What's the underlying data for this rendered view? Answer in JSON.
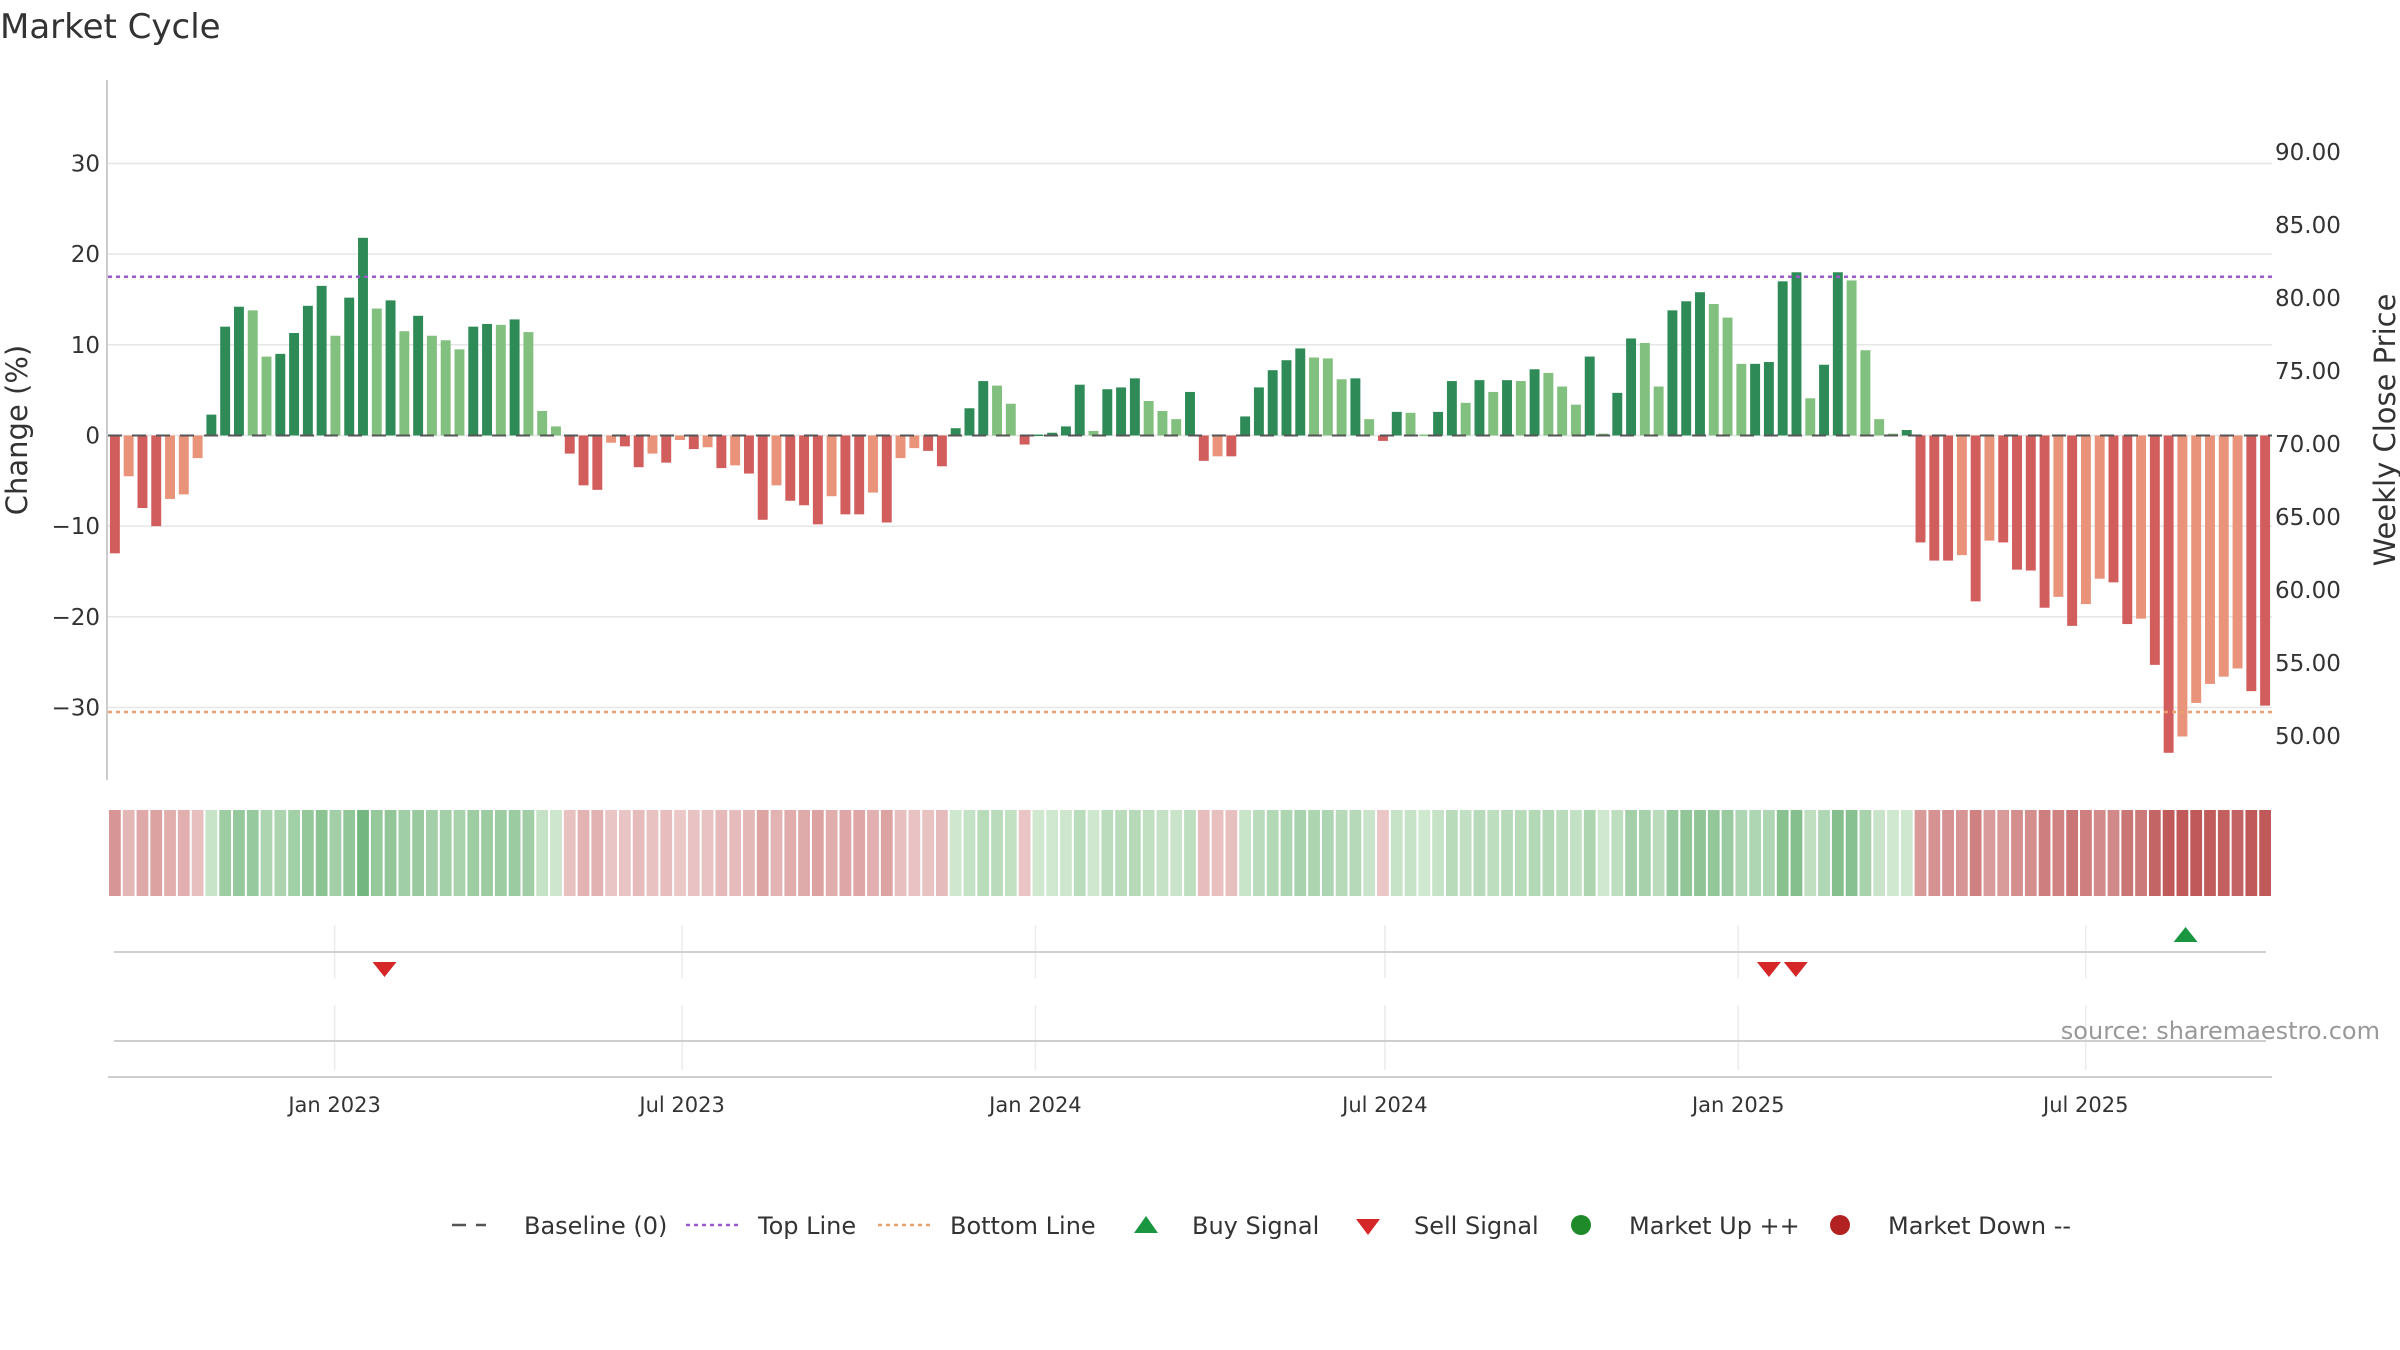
{
  "chart_data": {
    "type": "bar",
    "title": "Market Cycle",
    "ylabel_left": "Change (%)",
    "ylabel_right": "Weekly Close Price",
    "left_axis": {
      "min": -38,
      "max": 37,
      "ticks": [
        30,
        20,
        10,
        0,
        -10,
        -20,
        -30
      ],
      "tick_labels": [
        "30",
        "20",
        "10",
        "0",
        "−10",
        "−20",
        "−30"
      ]
    },
    "right_axis": {
      "ticks": [
        90,
        85,
        80,
        75,
        70,
        65,
        60,
        55,
        50
      ],
      "tick_labels": [
        "90.00",
        "85.00",
        "80.00",
        "75.00",
        "70.00",
        "65.00",
        "60.00",
        "55.00",
        "50.00"
      ]
    },
    "x_start": "2022-09-05",
    "x_end": "2025-10-06",
    "week_step_days": 7,
    "x_tick_labels": [
      {
        "date": "2023-01-01",
        "label": "Jan 2023"
      },
      {
        "date": "2023-07-01",
        "label": "Jul 2023"
      },
      {
        "date": "2024-01-01",
        "label": "Jan 2024"
      },
      {
        "date": "2024-07-01",
        "label": "Jul 2024"
      },
      {
        "date": "2025-01-01",
        "label": "Jan 2025"
      },
      {
        "date": "2025-07-01",
        "label": "Jul 2025"
      }
    ],
    "top_line": 17.5,
    "bottom_line": -30.5,
    "series": [
      {
        "name": "Change (%)",
        "values": [
          -13,
          -4.5,
          -8,
          -10,
          -7,
          -6.5,
          -2.5,
          2.3,
          12,
          14.2,
          13.8,
          8.7,
          9,
          11.3,
          14.3,
          16.5,
          11,
          15.2,
          21.8,
          14,
          14.9,
          11.5,
          13.2,
          11,
          10.5,
          9.5,
          12,
          12.3,
          12.2,
          12.8,
          11.4,
          2.7,
          1,
          -2,
          -5.5,
          -6,
          -0.8,
          -1.2,
          -3.5,
          -2,
          -3,
          -0.5,
          -1.5,
          -1.3,
          -3.6,
          -3.3,
          -4.2,
          -9.3,
          -5.5,
          -7.2,
          -7.7,
          -9.8,
          -6.7,
          -8.7,
          -8.7,
          -6.3,
          -9.6,
          -2.5,
          -1.4,
          -1.7,
          -3.4,
          0.8,
          3,
          6,
          5.5,
          3.5,
          -1,
          0.1,
          0.3,
          1,
          5.6,
          0.5,
          5.1,
          5.3,
          6.3,
          3.8,
          2.7,
          1.8,
          4.8,
          -2.8,
          -2.3,
          -2.3,
          2.1,
          5.3,
          7.2,
          8.3,
          9.6,
          8.6,
          8.5,
          6.2,
          6.3,
          1.8,
          -0.6,
          2.6,
          2.5,
          0.1,
          2.6,
          6,
          3.6,
          6.1,
          4.8,
          6.1,
          6,
          7.3,
          6.9,
          5.4,
          3.4,
          8.7,
          0.2,
          4.7,
          10.7,
          10.2,
          5.4,
          13.8,
          14.8,
          15.8,
          14.5,
          13,
          7.9,
          7.9,
          8.1,
          17,
          18,
          4.1,
          7.8,
          18,
          17.1,
          9.4,
          1.8,
          0.2,
          0.6,
          -11.8,
          -13.8,
          -13.8,
          -13.2,
          -18.3,
          -11.6,
          -11.8,
          -14.8,
          -14.9,
          -19,
          -17.8,
          -21,
          -18.6,
          -15.8,
          -16.2,
          -20.8,
          -20.2,
          -25.3,
          -35,
          -33.2,
          -29.5,
          -27.4,
          -26.6,
          -25.7,
          -28.2,
          -29.8
        ]
      },
      {
        "name": "Weekly Close Price",
        "values": []
      }
    ],
    "signals": [
      {
        "type": "sell",
        "date": "2023-01-27"
      },
      {
        "type": "sell",
        "date": "2025-01-17"
      },
      {
        "type": "sell",
        "date": "2025-01-31"
      },
      {
        "type": "buy",
        "date": "2025-08-22"
      }
    ],
    "colors": {
      "up_strong": "#2e8b57",
      "up_weak": "#82c07f",
      "down_strong": "#d25d5d",
      "down_weak": "#e8937a",
      "top_line": "#9b59d0",
      "bottom_line": "#e8a070",
      "buy": "#1a9641",
      "sell": "#d62728",
      "market_up": "#1f8a2a",
      "market_down": "#b22222"
    },
    "legend": {
      "placement": "bottom",
      "items": [
        {
          "label": "Baseline (0)",
          "symbol": "dash"
        },
        {
          "label": "Top Line",
          "symbol": "dotted-purple"
        },
        {
          "label": "Bottom Line",
          "symbol": "dotted-orange"
        },
        {
          "label": "Buy Signal",
          "symbol": "triangle-up"
        },
        {
          "label": "Sell Signal",
          "symbol": "triangle-down"
        },
        {
          "label": "Market Up ++",
          "symbol": "circle-green"
        },
        {
          "label": "Market Down --",
          "symbol": "circle-red"
        }
      ]
    },
    "source": "source: sharemaestro.com"
  }
}
